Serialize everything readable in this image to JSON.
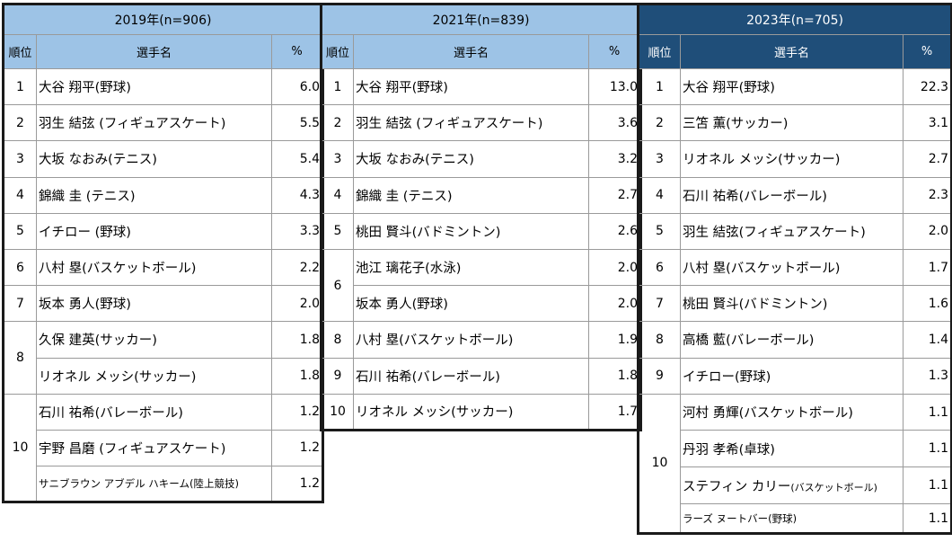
{
  "tables": [
    {
      "header": "2019年(n=906)",
      "col_rank": "順位",
      "col_name": "選手名",
      "col_pct": "%",
      "rows": [
        {
          "rank": "1",
          "name": "大谷 翔平(野球)",
          "pct": "6.0"
        },
        {
          "rank": "2",
          "name": "羽生 結弦 (フィギュアスケート)",
          "pct": "5.5"
        },
        {
          "rank": "3",
          "name": "大坂 なおみ(テニス)",
          "pct": "5.4"
        },
        {
          "rank": "4",
          "name": "錦織 圭 (テニス)",
          "pct": "4.3"
        },
        {
          "rank": "5",
          "name": "イチロー (野球)",
          "pct": "3.3"
        },
        {
          "rank": "6",
          "name": "八村 塁(バスケットボール)",
          "pct": "2.2"
        },
        {
          "rank": "7",
          "name": "坂本 勇人(野球)",
          "pct": "2.0"
        },
        {
          "rank": "8",
          "name": "久保 建英(サッカー)",
          "pct": "1.8"
        },
        {
          "rank": "",
          "name": "リオネル メッシ(サッカー)",
          "pct": "1.8"
        },
        {
          "rank": "10",
          "name": "石川 祐希(バレーボール)",
          "pct": "1.2"
        },
        {
          "rank": "",
          "name": "宇野 昌磨 (フィギュアスケート)",
          "pct": "1.2"
        },
        {
          "rank": "",
          "name": "サニブラウン アブデル ハキーム(陸上競技)",
          "pct": "1.2"
        }
      ]
    },
    {
      "header": "2021年(n=839)",
      "col_rank": "順位",
      "col_name": "選手名",
      "col_pct": "%",
      "rows": [
        {
          "rank": "1",
          "name": "大谷 翔平(野球)",
          "pct": "13.0"
        },
        {
          "rank": "2",
          "name": "羽生 結弦 (フィギュアスケート)",
          "pct": "3.6"
        },
        {
          "rank": "3",
          "name": "大坂 なおみ(テニス)",
          "pct": "3.2"
        },
        {
          "rank": "4",
          "name": "錦織 圭 (テニス)",
          "pct": "2.7"
        },
        {
          "rank": "5",
          "name": "桃田 賢斗(バドミントン)",
          "pct": "2.6"
        },
        {
          "rank": "6",
          "name": "池江 璃花子(水泳)",
          "pct": "2.0"
        },
        {
          "rank": "",
          "name": "坂本 勇人(野球)",
          "pct": "2.0"
        },
        {
          "rank": "8",
          "name": "八村 塁(バスケットボール)",
          "pct": "1.9"
        },
        {
          "rank": "9",
          "name": "石川 祐希(バレーボール)",
          "pct": "1.8"
        },
        {
          "rank": "10",
          "name": "リオネル メッシ(サッカー)",
          "pct": "1.7"
        }
      ]
    },
    {
      "header": "2023年(n=705)",
      "col_rank": "順位",
      "col_name": "選手名",
      "col_pct": "%",
      "rows": [
        {
          "rank": "1",
          "name": "大谷 翔平(野球)",
          "pct": "22.3"
        },
        {
          "rank": "2",
          "name": "三笘 薫(サッカー)",
          "pct": "3.1"
        },
        {
          "rank": "3",
          "name": "リオネル メッシ(サッカー)",
          "pct": "2.7"
        },
        {
          "rank": "4",
          "name": "石川 祐希(バレーボール)",
          "pct": "2.3"
        },
        {
          "rank": "5",
          "name": "羽生 結弦(フィギュアスケート)",
          "pct": "2.0"
        },
        {
          "rank": "6",
          "name": "八村 塁(バスケットボール)",
          "pct": "1.7"
        },
        {
          "rank": "7",
          "name": "桃田 賢斗(バドミントン)",
          "pct": "1.6"
        },
        {
          "rank": "8",
          "name": "高橋 藍(バレーボール)",
          "pct": "1.4"
        },
        {
          "rank": "9",
          "name": "イチロー(野球)",
          "pct": "1.3"
        },
        {
          "rank": "10",
          "name": "河村 勇輝(バスケットボール)",
          "pct": "1.1"
        },
        {
          "rank": "",
          "name": "丹羽 孝希(卓球)",
          "pct": "1.1"
        },
        {
          "rank": "",
          "name": "ステフィン カリー",
          "name_suffix": "(バスケットボール)",
          "pct": "1.1"
        },
        {
          "rank": "",
          "name": "ラーズ ヌートバー(野球)",
          "pct": "1.1"
        }
      ]
    }
  ]
}
